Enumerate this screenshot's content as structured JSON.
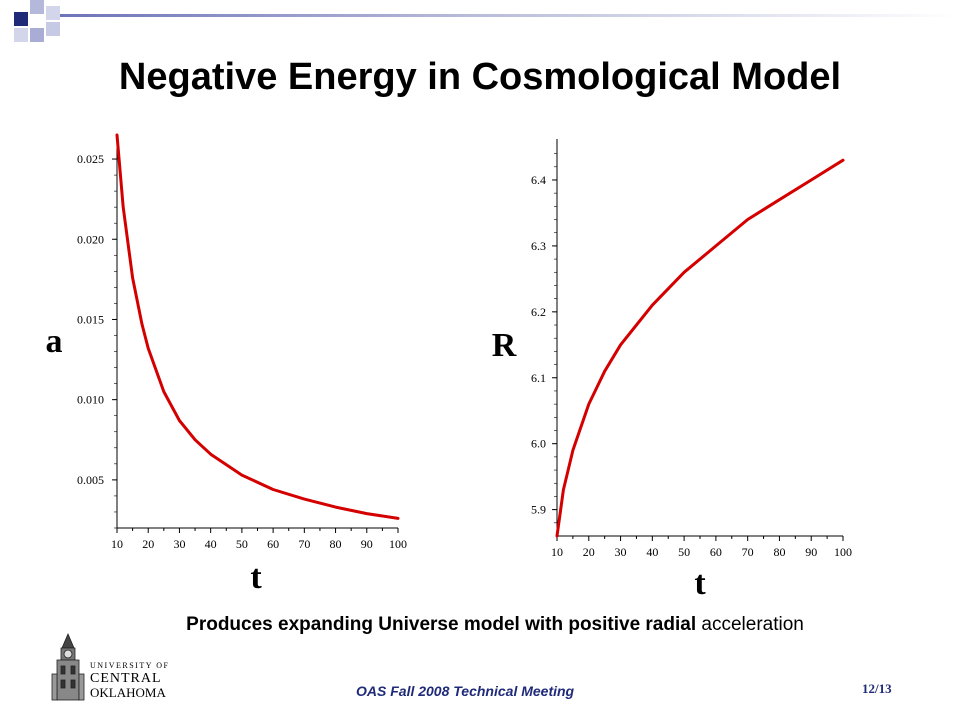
{
  "slide": {
    "title": "Negative Energy in Cosmological Model",
    "caption_bold": "Produces expanding Universe model with positive radial",
    "caption_normal": "acceleration",
    "footer": "OAS Fall 2008 Technical Meeting",
    "page_number": "12/13",
    "logo": {
      "line1": "UNIVERSITY OF",
      "line2": "CENTRAL",
      "line3": "OKLAHOMA"
    }
  },
  "colors": {
    "curve": "#d40000",
    "footer_text": "#1f2a78"
  },
  "chart_data": [
    {
      "type": "line",
      "xlabel": "t",
      "ylabel": "a",
      "xlim": [
        10,
        100
      ],
      "ylim": [
        0.002,
        0.026
      ],
      "xticks": [
        "10",
        "20",
        "30",
        "40",
        "50",
        "60",
        "70",
        "80",
        "90",
        "100"
      ],
      "yticks": [
        "0.005",
        "0.010",
        "0.015",
        "0.020",
        "0.025"
      ],
      "ytick_values": [
        0.005,
        0.01,
        0.015,
        0.02,
        0.025
      ],
      "series": [
        {
          "x": [
            10,
            12,
            15,
            18,
            20,
            25,
            30,
            35,
            40,
            50,
            60,
            70,
            80,
            90,
            100
          ],
          "y": [
            0.0265,
            0.022,
            0.0176,
            0.0147,
            0.0132,
            0.0105,
            0.0087,
            0.0075,
            0.0066,
            0.0053,
            0.0044,
            0.0038,
            0.0033,
            0.0029,
            0.0026
          ]
        }
      ]
    },
    {
      "type": "line",
      "xlabel": "t",
      "ylabel": "R",
      "xlim": [
        10,
        100
      ],
      "ylim": [
        5.86,
        6.45
      ],
      "xticks": [
        "10",
        "20",
        "30",
        "40",
        "50",
        "60",
        "70",
        "80",
        "90",
        "100"
      ],
      "yticks": [
        "5.9",
        "6.0",
        "6.1",
        "6.2",
        "6.3",
        "6.4"
      ],
      "ytick_values": [
        5.9,
        6.0,
        6.1,
        6.2,
        6.3,
        6.4
      ],
      "series": [
        {
          "x": [
            10,
            12,
            15,
            20,
            25,
            30,
            40,
            50,
            60,
            70,
            80,
            90,
            100
          ],
          "y": [
            5.86,
            5.93,
            5.99,
            6.06,
            6.11,
            6.15,
            6.21,
            6.26,
            6.3,
            6.34,
            6.37,
            6.4,
            6.43
          ]
        }
      ]
    }
  ]
}
